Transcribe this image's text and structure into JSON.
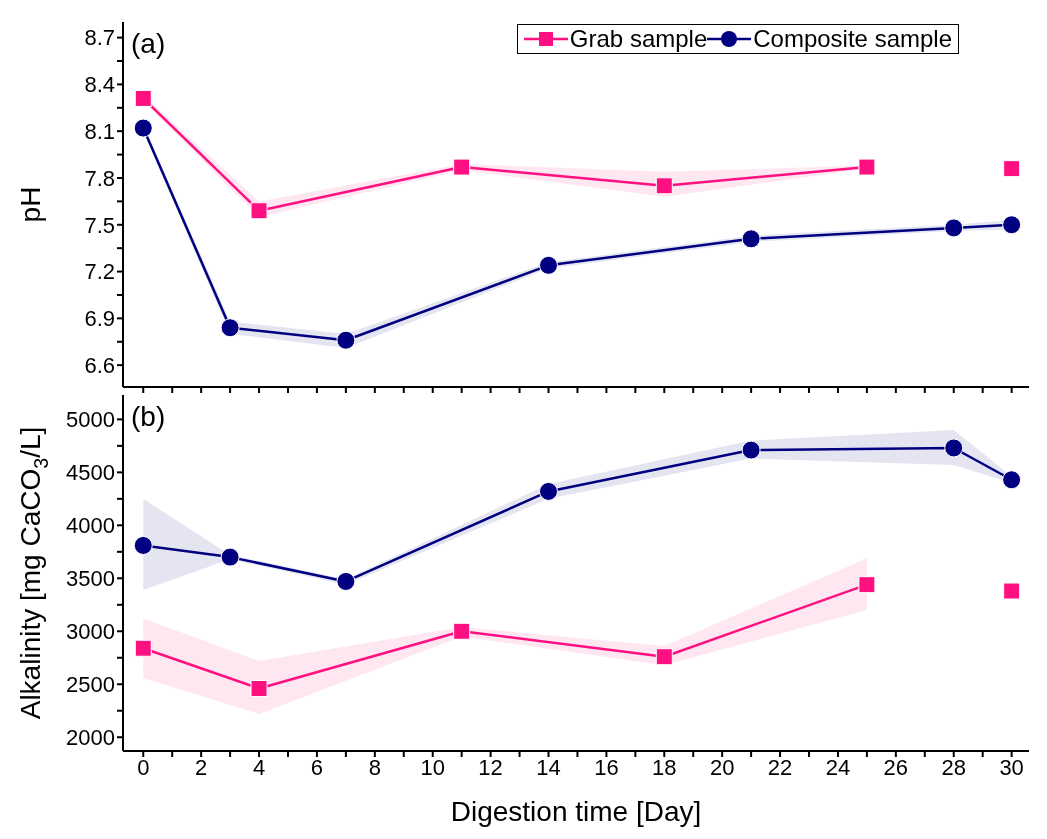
{
  "chart_data": [
    {
      "type": "line",
      "ylabel": "pH",
      "annotations": [
        "(a)"
      ],
      "legend": "top right",
      "tick_labels": "y",
      "xlim": [
        -0.7,
        30.6
      ],
      "xticks": [
        {
          "value": 0,
          "label": null
        },
        {
          "value": 1,
          "label": null
        },
        {
          "value": 2,
          "label": null
        },
        {
          "value": 3,
          "label": null
        },
        {
          "value": 4,
          "label": null
        },
        {
          "value": 5,
          "label": null
        },
        {
          "value": 6,
          "label": null
        },
        {
          "value": 7,
          "label": null
        },
        {
          "value": 8,
          "label": null
        },
        {
          "value": 9,
          "label": null
        },
        {
          "value": 10,
          "label": null
        },
        {
          "value": 11,
          "label": null
        },
        {
          "value": 12,
          "label": null
        },
        {
          "value": 13,
          "label": null
        },
        {
          "value": 14,
          "label": null
        },
        {
          "value": 15,
          "label": null
        },
        {
          "value": 16,
          "label": null
        },
        {
          "value": 17,
          "label": null
        },
        {
          "value": 18,
          "label": null
        },
        {
          "value": 19,
          "label": null
        },
        {
          "value": 20,
          "label": null
        },
        {
          "value": 21,
          "label": null
        },
        {
          "value": 22,
          "label": null
        },
        {
          "value": 23,
          "label": null
        },
        {
          "value": 24,
          "label": null
        },
        {
          "value": 25,
          "label": null
        },
        {
          "value": 26,
          "label": null
        },
        {
          "value": 27,
          "label": null
        },
        {
          "value": 28,
          "label": null
        },
        {
          "value": 29,
          "label": null
        },
        {
          "value": 30,
          "label": null
        }
      ],
      "ylim": [
        6.46,
        8.8
      ],
      "yticks": [
        {
          "value": 6.6,
          "label": "6.6"
        },
        {
          "value": 6.75,
          "label": null
        },
        {
          "value": 6.9,
          "label": "6.9"
        },
        {
          "value": 7.05,
          "label": null
        },
        {
          "value": 7.2,
          "label": "7.2"
        },
        {
          "value": 7.35,
          "label": null
        },
        {
          "value": 7.5,
          "label": "7.5"
        },
        {
          "value": 7.65,
          "label": null
        },
        {
          "value": 7.8,
          "label": "7.8"
        },
        {
          "value": 7.95,
          "label": null
        },
        {
          "value": 8.1,
          "label": "8.1"
        },
        {
          "value": 8.25,
          "label": null
        },
        {
          "value": 8.4,
          "label": "8.4"
        },
        {
          "value": 8.55,
          "label": null
        },
        {
          "value": 8.7,
          "label": "8.7"
        }
      ],
      "series": [
        {
          "name": "Grab sample",
          "color": "#ff1080",
          "marker": "square",
          "x": [
            0,
            4,
            11,
            18,
            25,
            28,
            30
          ],
          "values": [
            8.31,
            7.59,
            7.87,
            7.75,
            7.87,
            null,
            7.86
          ],
          "lower": [
            8.29,
            7.55,
            7.85,
            7.68,
            7.86,
            null,
            null
          ],
          "upper": [
            8.33,
            7.65,
            7.89,
            7.84,
            7.88,
            null,
            null
          ]
        },
        {
          "name": "Composite sample",
          "color": "#000080",
          "marker": "circle",
          "x": [
            0,
            3,
            7,
            14,
            21,
            28,
            30
          ],
          "values": [
            8.12,
            6.84,
            6.76,
            7.24,
            7.41,
            7.48,
            7.5
          ],
          "lower": [
            8.1,
            6.8,
            6.71,
            7.22,
            7.39,
            7.46,
            7.47
          ],
          "upper": [
            8.14,
            6.88,
            6.8,
            7.26,
            7.43,
            7.5,
            7.53
          ]
        }
      ]
    },
    {
      "type": "line",
      "xlabel": "Digestion time [Day]",
      "ylabel": "Alkalinity [mg CaCO$_{3}$/L]",
      "annotations": [
        "(b)"
      ],
      "xlim": [
        -0.7,
        30.6
      ],
      "xticks": [
        0,
        {
          "value": 1,
          "label": null
        },
        2,
        {
          "value": 3,
          "label": null
        },
        4,
        {
          "value": 5,
          "label": null
        },
        6,
        {
          "value": 7,
          "label": null
        },
        8,
        {
          "value": 9,
          "label": null
        },
        10,
        {
          "value": 11,
          "label": null
        },
        12,
        {
          "value": 13,
          "label": null
        },
        14,
        {
          "value": 15,
          "label": null
        },
        16,
        {
          "value": 17,
          "label": null
        },
        18,
        {
          "value": 19,
          "label": null
        },
        20,
        {
          "value": 21,
          "label": null
        },
        22,
        {
          "value": 23,
          "label": null
        },
        24,
        {
          "value": 25,
          "label": null
        },
        26,
        {
          "value": 27,
          "label": null
        },
        28,
        {
          "value": 29,
          "label": null
        },
        30
      ],
      "ylim": [
        1870,
        5230
      ],
      "yticks": [
        2000,
        {
          "value": 2250,
          "label": null
        },
        2500,
        {
          "value": 2750,
          "label": null
        },
        3000,
        {
          "value": 3250,
          "label": null
        },
        3500,
        {
          "value": 3750,
          "label": null
        },
        4000,
        {
          "value": 4250,
          "label": null
        },
        4500,
        {
          "value": 4750,
          "label": null
        },
        5000
      ],
      "series": [
        {
          "color": "#ff1080",
          "marker": "square",
          "x": [
            0,
            4,
            11,
            18,
            25,
            28,
            30
          ],
          "values": [
            2840,
            2460,
            3000,
            2760,
            3440,
            null,
            3380
          ],
          "lower": [
            2560,
            2220,
            2950,
            2680,
            3200,
            null,
            null
          ],
          "upper": [
            3120,
            2720,
            3040,
            2860,
            3690,
            null,
            null
          ]
        },
        {
          "color": "#000080",
          "marker": "circle",
          "x": [
            0,
            3,
            7,
            14,
            21,
            28,
            30
          ],
          "values": [
            3810,
            3700,
            3470,
            4320,
            4710,
            4730,
            4430
          ],
          "lower": [
            3390,
            3680,
            3440,
            4250,
            4630,
            4570,
            4400
          ],
          "upper": [
            4250,
            3720,
            3490,
            4390,
            4800,
            4900,
            4460
          ]
        }
      ]
    }
  ]
}
